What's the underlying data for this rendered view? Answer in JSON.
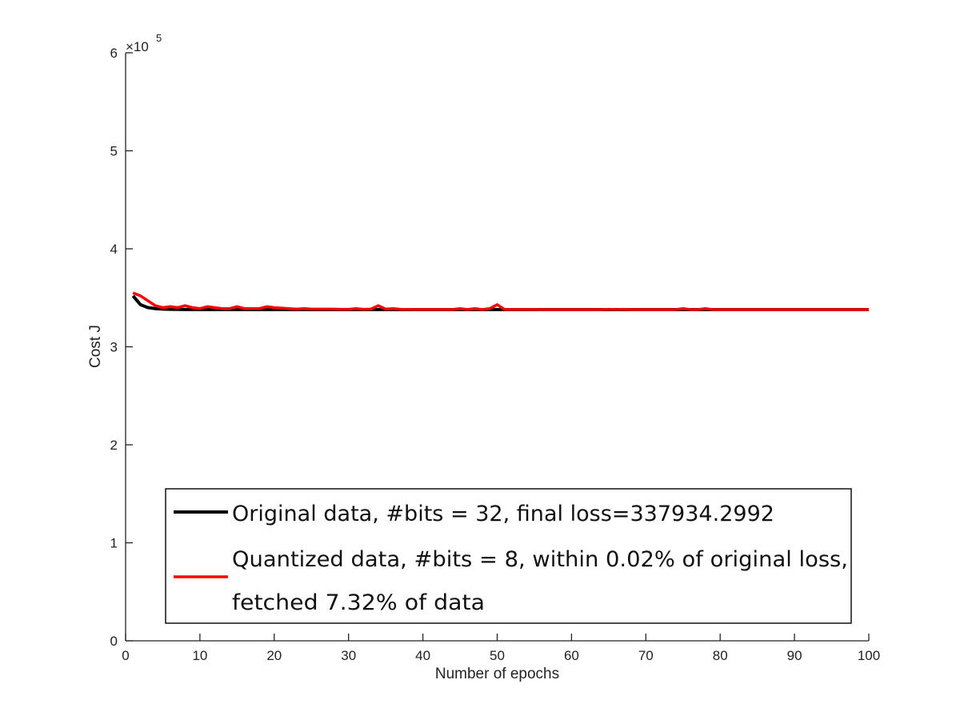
{
  "chart_data": {
    "type": "line",
    "xlabel": "Number of epochs",
    "ylabel": "Cost J",
    "y_exponent_prefix": "×10",
    "y_exponent_power": "5",
    "y_multiplier": 100000,
    "xlim": [
      0,
      100
    ],
    "ylim": [
      0,
      6
    ],
    "xticks": [
      0,
      10,
      20,
      30,
      40,
      50,
      60,
      70,
      80,
      90,
      100
    ],
    "yticks": [
      0,
      1,
      2,
      3,
      4,
      5,
      6
    ],
    "grid": false,
    "legend_position": "bottom",
    "series": [
      {
        "name": "Original data, #bits = 32, final loss=337934.2992",
        "color": "#000000",
        "x": [
          1,
          2,
          3,
          4,
          5,
          6,
          7,
          8,
          9,
          10,
          12,
          15,
          20,
          30,
          40,
          50,
          60,
          70,
          80,
          90,
          100
        ],
        "y": [
          3.52,
          3.43,
          3.4,
          3.39,
          3.385,
          3.383,
          3.382,
          3.381,
          3.38,
          3.38,
          3.38,
          3.38,
          3.38,
          3.38,
          3.38,
          3.38,
          3.38,
          3.38,
          3.38,
          3.38,
          3.38
        ]
      },
      {
        "name": "Quantized data, #bits = 8, within 0.02% of original loss, fetched 7.32% of data",
        "legend_lines": [
          "Quantized data, #bits = 8, within 0.02% of original loss,",
          " fetched 7.32% of data"
        ],
        "color": "#ff0000",
        "x": [
          1,
          2,
          3,
          4,
          5,
          6,
          7,
          8,
          9,
          10,
          11,
          12,
          13,
          14,
          15,
          16,
          17,
          18,
          19,
          20,
          21,
          22,
          23,
          24,
          25,
          26,
          27,
          28,
          29,
          30,
          31,
          32,
          33,
          34,
          35,
          36,
          37,
          38,
          39,
          40,
          41,
          42,
          43,
          44,
          45,
          46,
          47,
          48,
          49,
          50,
          51,
          52,
          53,
          54,
          55,
          56,
          57,
          58,
          59,
          60,
          61,
          62,
          63,
          64,
          65,
          66,
          67,
          68,
          69,
          70,
          71,
          72,
          73,
          74,
          75,
          76,
          77,
          78,
          79,
          80,
          81,
          82,
          83,
          84,
          85,
          86,
          87,
          88,
          89,
          90,
          91,
          92,
          93,
          94,
          95,
          96,
          97,
          98,
          99,
          100
        ],
        "y": [
          3.55,
          3.52,
          3.47,
          3.42,
          3.4,
          3.41,
          3.4,
          3.42,
          3.4,
          3.39,
          3.41,
          3.4,
          3.39,
          3.39,
          3.41,
          3.39,
          3.39,
          3.39,
          3.41,
          3.4,
          3.395,
          3.39,
          3.385,
          3.39,
          3.385,
          3.385,
          3.385,
          3.385,
          3.383,
          3.383,
          3.39,
          3.383,
          3.385,
          3.42,
          3.385,
          3.39,
          3.383,
          3.382,
          3.381,
          3.381,
          3.381,
          3.381,
          3.381,
          3.381,
          3.39,
          3.381,
          3.39,
          3.381,
          3.39,
          3.43,
          3.381,
          3.381,
          3.381,
          3.381,
          3.381,
          3.38,
          3.38,
          3.38,
          3.38,
          3.38,
          3.38,
          3.38,
          3.38,
          3.38,
          3.383,
          3.38,
          3.383,
          3.38,
          3.38,
          3.38,
          3.38,
          3.38,
          3.38,
          3.38,
          3.39,
          3.38,
          3.38,
          3.39,
          3.38,
          3.38,
          3.38,
          3.38,
          3.38,
          3.38,
          3.38,
          3.38,
          3.38,
          3.38,
          3.38,
          3.38,
          3.38,
          3.38,
          3.38,
          3.38,
          3.38,
          3.38,
          3.38,
          3.38,
          3.38,
          3.38
        ]
      }
    ]
  }
}
